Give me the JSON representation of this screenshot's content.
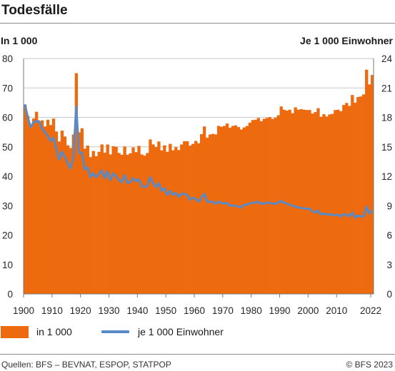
{
  "header": {
    "title": "Todesfälle"
  },
  "axis_left_label": "In 1 000",
  "axis_right_label": "Je 1 000 Einwohner",
  "legend": {
    "bar_label": "in 1 000",
    "line_label": "je 1 000 Einwohner"
  },
  "footer": {
    "source": "Quellen: BFS – BEVNAT, ESPOP, STATPOP",
    "copyright": "© BFS 2023"
  },
  "colors": {
    "bars": "#ee6a0f",
    "line": "#5a8ac6",
    "grid": "#c9c9c9",
    "axis": "#7a7a7a"
  },
  "chart_data": {
    "type": "bar",
    "title": "Todesfälle",
    "xlim": [
      1900,
      2022
    ],
    "x_ticks": [
      "1900",
      "1910",
      "1920",
      "1930",
      "1940",
      "1950",
      "1960",
      "1970",
      "1980",
      "1990",
      "2000",
      "2010",
      "2022"
    ],
    "grid": "horizontal",
    "legend_position": "bottom-left",
    "series": [
      {
        "name": "in 1 000",
        "type": "bar",
        "axis": "left",
        "ylim": [
          0,
          80
        ],
        "y_ticks": [
          "0",
          "10",
          "20",
          "30",
          "40",
          "50",
          "60",
          "70",
          "80"
        ],
        "x_start": 1900,
        "values": [
          64.3,
          60.5,
          57.0,
          59.6,
          61.9,
          58.3,
          59.0,
          56.9,
          59.2,
          57.4,
          59.6,
          55.2,
          51.8,
          55.5,
          53.5,
          50.5,
          49.6,
          54.2,
          75.0,
          54.9,
          56.3,
          49.4,
          50.4,
          46.5,
          48.6,
          46.8,
          48.3,
          50.8,
          48.0,
          50.8,
          47.4,
          50.2,
          50.0,
          47.9,
          47.3,
          50.1,
          47.3,
          47.8,
          49.8,
          48.2,
          50.3,
          47.4,
          47.0,
          47.9,
          52.5,
          50.8,
          49.9,
          51.8,
          48.8,
          50.5,
          48.3,
          51.0,
          48.8,
          49.9,
          48.9,
          50.8,
          51.9,
          51.9,
          50.4,
          51.0,
          52.0,
          51.2,
          54.3,
          56.9,
          53.1,
          54.2,
          54.4,
          54.2,
          57.1,
          56.8,
          57.1,
          57.9,
          56.5,
          57.1,
          57.3,
          56.7,
          55.9,
          56.6,
          57.1,
          58.2,
          59.1,
          59.2,
          59.8,
          58.7,
          59.5,
          59.8,
          60.1,
          59.5,
          59.9,
          60.7,
          63.7,
          62.6,
          62.3,
          62.6,
          61.4,
          63.4,
          62.6,
          62.8,
          62.6,
          62.5,
          62.5,
          61.3,
          61.8,
          63.1,
          60.2,
          61.1,
          60.3,
          61.0,
          61.2,
          62.5,
          62.6,
          62.1,
          64.2,
          64.9,
          63.9,
          67.6,
          65.0,
          66.9,
          67.1,
          67.8,
          76.2,
          71.2,
          74.4
        ]
      },
      {
        "name": "je 1 000 Einwohner",
        "type": "line",
        "axis": "right",
        "ylim": [
          0,
          24
        ],
        "y_ticks": [
          "0",
          "3",
          "6",
          "9",
          "12",
          "15",
          "18",
          "21",
          "24"
        ],
        "x_start": 1900,
        "values": [
          19.3,
          18.0,
          17.0,
          17.5,
          17.6,
          17.6,
          16.8,
          16.5,
          16.1,
          15.6,
          15.9,
          14.8,
          13.7,
          14.5,
          14.0,
          13.3,
          12.8,
          13.9,
          19.1,
          14.4,
          14.4,
          12.7,
          12.9,
          11.9,
          12.3,
          11.9,
          12.2,
          12.6,
          11.8,
          12.5,
          11.6,
          12.3,
          12.0,
          11.6,
          11.4,
          12.1,
          11.3,
          11.4,
          11.8,
          11.5,
          11.7,
          11.0,
          10.9,
          11.0,
          11.9,
          11.3,
          10.9,
          11.3,
          10.5,
          10.8,
          10.1,
          10.5,
          10.1,
          10.3,
          9.9,
          10.2,
          10.2,
          10.1,
          9.6,
          9.8,
          9.7,
          9.4,
          9.8,
          10.2,
          9.4,
          9.4,
          9.4,
          9.2,
          9.4,
          9.3,
          9.2,
          9.3,
          9.0,
          9.0,
          9.0,
          8.9,
          8.8,
          9.1,
          9.1,
          9.2,
          9.3,
          9.3,
          9.4,
          9.2,
          9.2,
          9.3,
          9.3,
          9.2,
          9.2,
          9.3,
          9.5,
          9.3,
          9.2,
          9.1,
          9.0,
          8.9,
          8.8,
          8.8,
          8.7,
          8.7,
          8.7,
          8.4,
          8.3,
          8.5,
          8.1,
          8.2,
          8.1,
          8.1,
          8.1,
          8.0,
          8.1,
          7.9,
          8.1,
          8.1,
          7.9,
          8.3,
          7.8,
          8.0,
          7.9,
          7.9,
          8.9,
          8.2,
          8.5
        ]
      }
    ]
  }
}
